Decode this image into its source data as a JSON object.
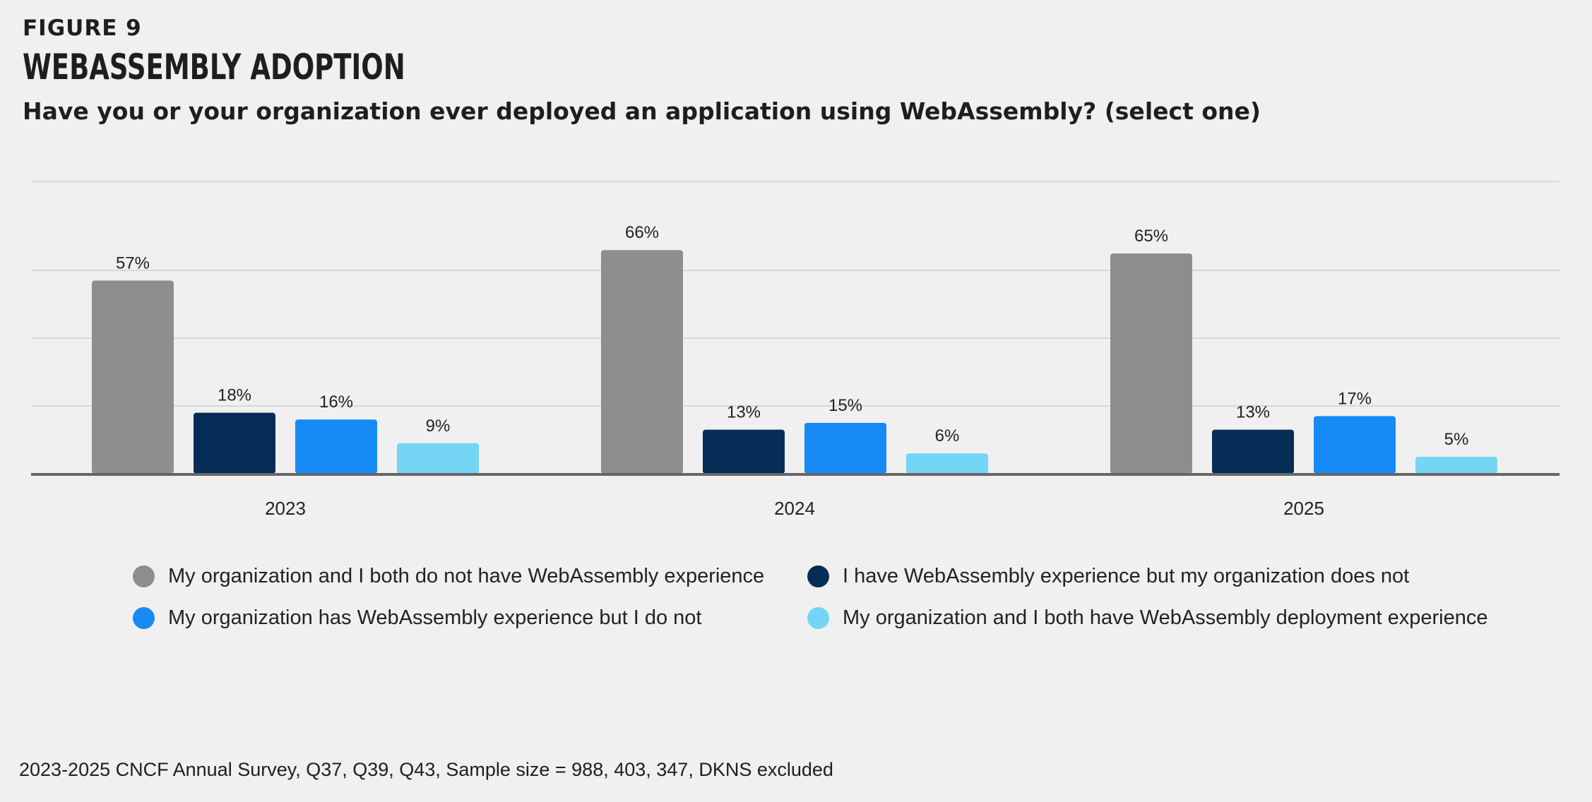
{
  "figure_label": "FIGURE 9",
  "title": "WEBASSEMBLY ADOPTION",
  "subtitle": "Have you or your organization ever deployed an application using WebAssembly? (select one)",
  "source_note": "2023-2025 CNCF Annual Survey, Q37, Q39, Q43, Sample size = 988, 403, 347, DKNS excluded",
  "colors": {
    "gray": "#8e8e8e",
    "navy": "#052d55",
    "blue": "#178bf5",
    "light_blue": "#75d5f5",
    "gridline": "#d8d8d8",
    "axis": "#666666"
  },
  "chart_data": {
    "type": "bar",
    "categories": [
      "2023",
      "2024",
      "2025"
    ],
    "ylim": [
      0,
      75
    ],
    "grid": true,
    "legend_position": "bottom",
    "series": [
      {
        "name": "My organization and I both do not have WebAssembly experience",
        "color": "#8e8e8e",
        "values": [
          57,
          66,
          65
        ],
        "labels": [
          "57%",
          "66%",
          "65%"
        ]
      },
      {
        "name": "I have WebAssembly experience but my organization does not",
        "color": "#052d55",
        "values": [
          18,
          13,
          13
        ],
        "labels": [
          "18%",
          "13%",
          "13%"
        ]
      },
      {
        "name": "My organization has WebAssembly experience but I do not",
        "color": "#178bf5",
        "values": [
          16,
          15,
          17
        ],
        "labels": [
          "16%",
          "15%",
          "17%"
        ]
      },
      {
        "name": "My organization and I both have WebAssembly deployment experience",
        "color": "#75d5f5",
        "values": [
          9,
          6,
          5
        ],
        "labels": [
          "9%",
          "6%",
          "5%"
        ]
      }
    ]
  }
}
